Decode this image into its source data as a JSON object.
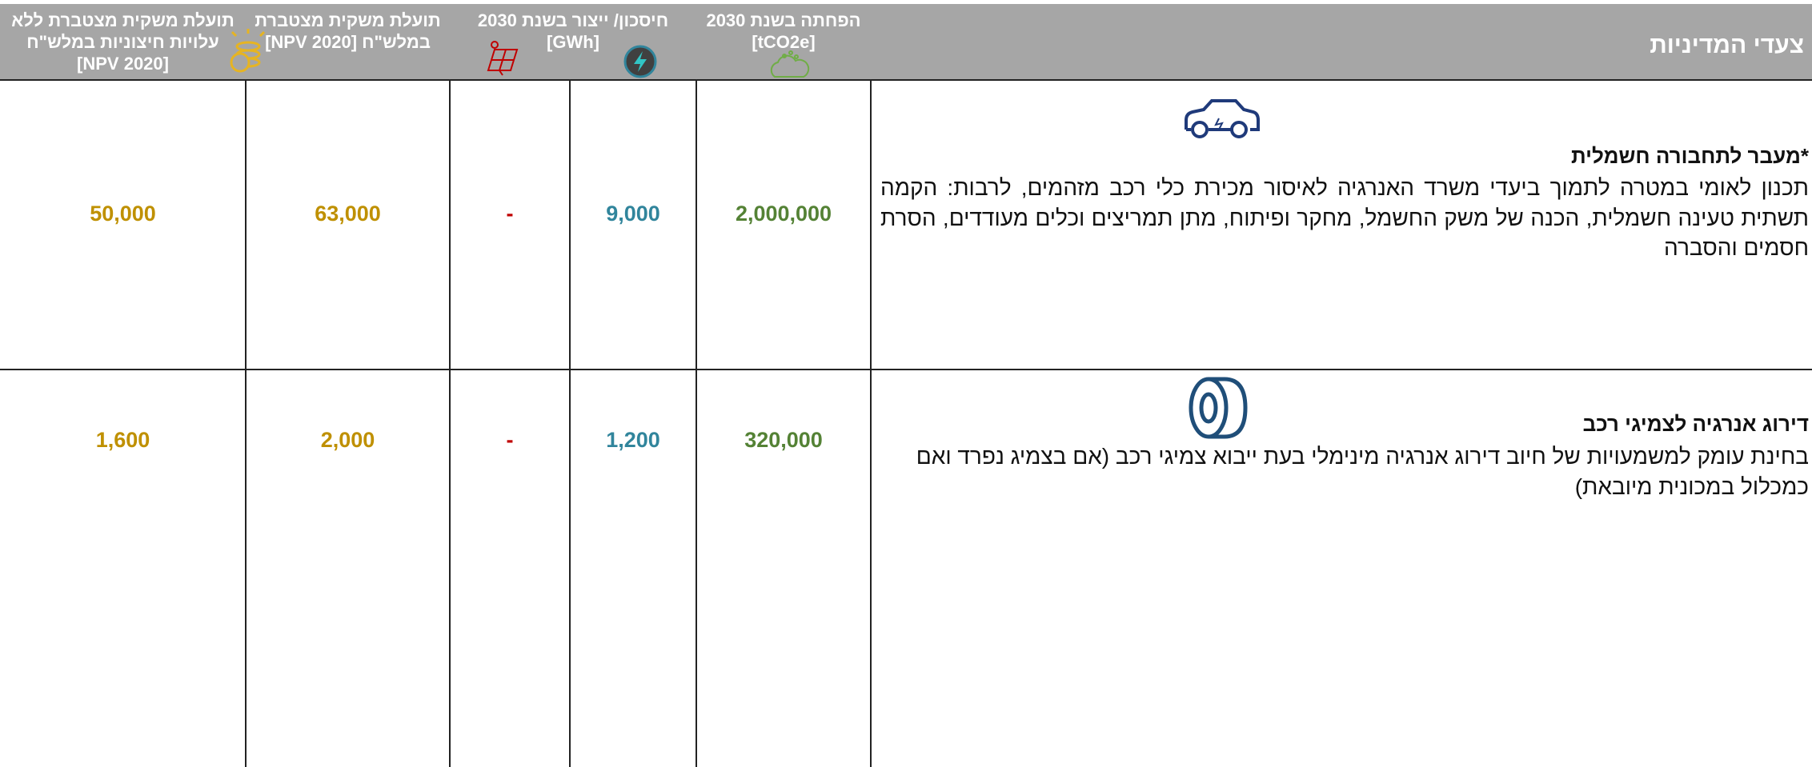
{
  "header": {
    "columns": [
      {
        "lines": [
          "צעדי המדיניות"
        ]
      },
      {
        "lines": [
          "הפחתה בשנת 2030",
          "[tCO2e]"
        ]
      },
      {
        "lines": [
          "חיסכון/ ייצור בשנת 2030",
          "[GWh]"
        ]
      },
      {
        "lines": [
          "תועלת משקית מצטברת",
          "במלש\"ח [2020 NPV]"
        ]
      },
      {
        "lines": [
          "תועלת משקית מצטברת ללא",
          "עלויות חיצוניות במלש\"ח",
          "[2020 NPV]"
        ]
      }
    ]
  },
  "table": {
    "rows": [
      {
        "title": "*מעבר לתחבורה חשמלית",
        "description": "תכנון לאומי במטרה לתמוך ביעדי משרד האנרגיה לאיסור מכירת כלי רכב מזהמים, לרבות: הקמה תשתית טעינה חשמלית, הכנה של משק החשמל, מחקר ופיתוח, מתן תמריצים וכלים מעודדים, הסרת חסמים והסברה",
        "cells": [
          "2,000,000",
          "9,000",
          "-",
          "63,000",
          "50,000"
        ]
      },
      {
        "title": "דירוג אנרגיה לצמיגי רכב",
        "description": "בחינת עומק למשמעויות של חיוב דירוג אנרגיה מינימלי בעת ייבוא צמיגי רכב (אם בצמיג נפרד ואם כמכלול במכונית מיובאת)",
        "cells": [
          "320,000",
          "1,200",
          "-",
          "2,000",
          "1,600"
        ]
      }
    ]
  }
}
